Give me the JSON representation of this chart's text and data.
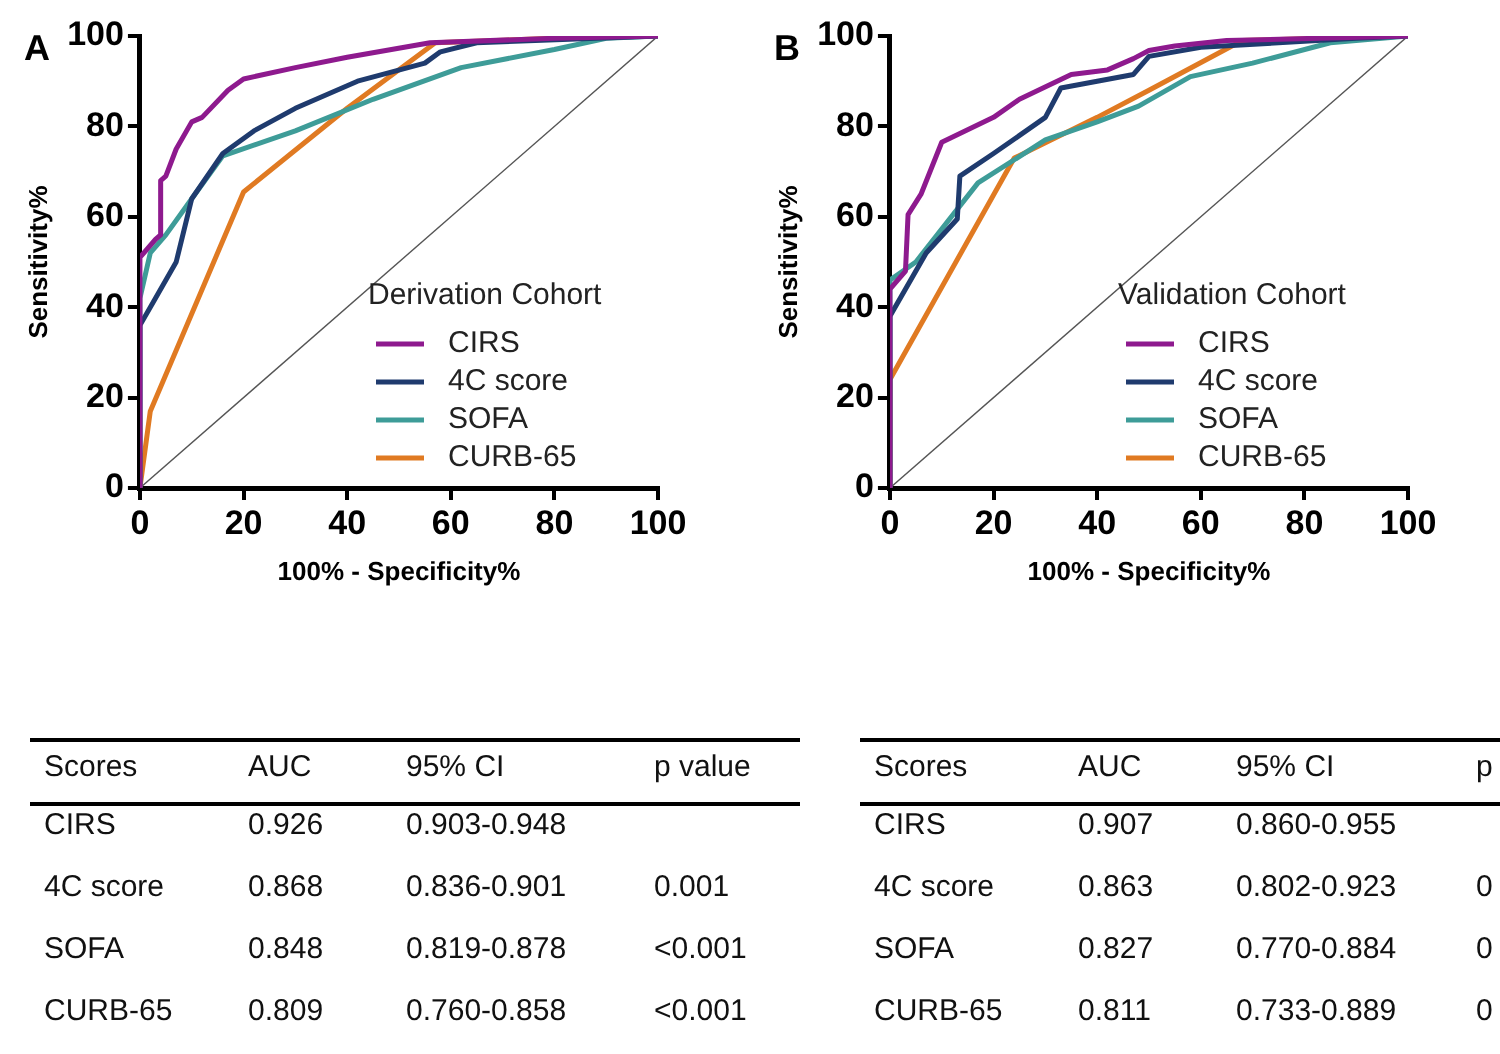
{
  "chart_data": [
    {
      "type": "line",
      "title": "A",
      "xlabel": "100% - Specificity%",
      "ylabel": "Sensitivity%",
      "legend_title": "Derivation Cohort",
      "legend": "bottom right",
      "grid": false,
      "marker": "none",
      "xlim": [
        0,
        100
      ],
      "ylim": [
        0,
        100
      ],
      "xticks": [
        0,
        20,
        40,
        60,
        80,
        100
      ],
      "yticks": [
        0,
        20,
        40,
        60,
        80,
        100
      ],
      "series": [
        {
          "name": "CIRS",
          "color": "#8e1a8e",
          "x": [
            0,
            0,
            3,
            4,
            4,
            5,
            7,
            10,
            12,
            17,
            20,
            30,
            40,
            56,
            80,
            100
          ],
          "values": [
            0,
            51,
            55,
            56,
            68,
            69,
            75,
            81,
            82,
            88,
            90.5,
            93,
            95.3,
            98.5,
            99.5,
            100
          ]
        },
        {
          "name": "4C score",
          "color": "#1f3b6e",
          "x": [
            0,
            0,
            3,
            7,
            10,
            16,
            22,
            30,
            42,
            55,
            58,
            65,
            100
          ],
          "values": [
            0,
            36,
            42,
            50,
            64,
            74,
            79,
            84,
            90,
            94,
            96.5,
            98.5,
            100
          ]
        },
        {
          "name": "SOFA",
          "color": "#3e9c98",
          "x": [
            0,
            0,
            2,
            5,
            10,
            16,
            30,
            45,
            62,
            80,
            90,
            100
          ],
          "values": [
            0,
            42,
            52,
            56,
            64,
            73.5,
            79,
            86,
            93,
            97,
            99.5,
            100
          ]
        },
        {
          "name": "CURB-65",
          "color": "#e07a22",
          "x": [
            0,
            2,
            20,
            40,
            57,
            80,
            100
          ],
          "values": [
            0,
            17,
            65.5,
            84,
            98.5,
            99.5,
            100
          ]
        },
        {
          "color": "#555555",
          "x": [
            0,
            100
          ],
          "values": [
            0,
            100
          ]
        }
      ]
    },
    {
      "type": "line",
      "title": "B",
      "xlabel": "100% - Specificity%",
      "ylabel": "Sensitivity%",
      "legend_title": "Validation Cohort",
      "legend": "bottom right",
      "grid": false,
      "marker": "none",
      "xlim": [
        0,
        100
      ],
      "ylim": [
        0,
        100
      ],
      "xticks": [
        0,
        20,
        40,
        60,
        80,
        100
      ],
      "yticks": [
        0,
        20,
        40,
        60,
        80,
        100
      ],
      "series": [
        {
          "name": "CIRS",
          "color": "#8e1a8e",
          "x": [
            0,
            0,
            3,
            3.5,
            6,
            10,
            20,
            25,
            35,
            42,
            47,
            50,
            55,
            65,
            100
          ],
          "values": [
            0,
            44,
            48,
            60.5,
            65,
            76.5,
            82,
            86,
            91.5,
            92.5,
            95,
            96.8,
            97.8,
            99,
            100
          ]
        },
        {
          "name": "4C score",
          "color": "#1f3b6e",
          "x": [
            0,
            0,
            7,
            13,
            13.5,
            20,
            30,
            33,
            40,
            47,
            50,
            60,
            90,
            100
          ],
          "values": [
            0,
            38,
            52,
            59.5,
            69,
            74,
            82,
            88.5,
            90,
            91.5,
            95.5,
            97.5,
            99.5,
            100
          ]
        },
        {
          "name": "SOFA",
          "color": "#3e9c98",
          "x": [
            0,
            0,
            5,
            17,
            30,
            40,
            48,
            58,
            70,
            85,
            100
          ],
          "values": [
            0,
            46,
            50,
            67.5,
            77,
            81,
            84.5,
            91,
            94,
            98.5,
            100
          ]
        },
        {
          "name": "CURB-65",
          "color": "#e07a22",
          "x": [
            0,
            0,
            24,
            40,
            50,
            68,
            100
          ],
          "values": [
            0,
            24,
            73,
            82,
            88,
            99,
            100
          ]
        },
        {
          "color": "#555555",
          "x": [
            0,
            100
          ],
          "values": [
            0,
            100
          ]
        }
      ]
    },
    {
      "type": "other",
      "annotations": [
        "Scores",
        "AUC",
        "95% CI",
        "p value",
        "CIRS",
        "0.926",
        "0.903-0.948",
        null,
        "4C score",
        "0.868",
        "0.836-0.901",
        "0.001",
        "SOFA",
        "0.848",
        "0.819-0.878",
        "<0.001",
        "CURB-65",
        "0.809",
        "0.760-0.858",
        "<0.001"
      ]
    },
    {
      "type": "other",
      "annotations": [
        "Scores",
        "AUC",
        "95% CI",
        "p",
        "CIRS",
        "0.907",
        "0.860-0.955",
        null,
        "4C score",
        "0.863",
        "0.802-0.923",
        "0",
        "SOFA",
        "0.827",
        "0.770-0.884",
        "0",
        "CURB-65",
        "0.811",
        "0.733-0.889",
        "0"
      ]
    }
  ]
}
